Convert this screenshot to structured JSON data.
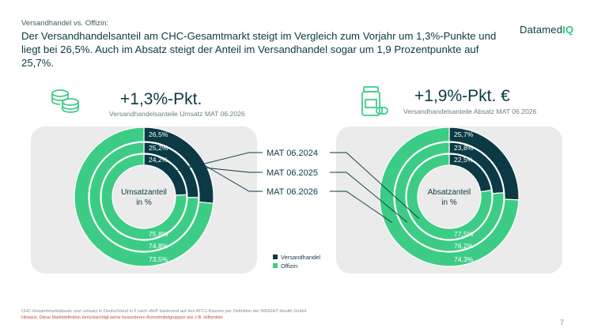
{
  "header": {
    "kicker": "Versandhandel vs. Offizin:",
    "headline": "Der Versandhandelsanteil am CHC-Gesamtmarkt steigt im Vergleich zum Vorjahr um 1,3%-Punkte und liegt bei 26,5%. Auch im Absatz steigt der Anteil im Versandhandel sogar um 1,9 Prozentpunkte auf 25,7%.",
    "logo_main": "Datamed",
    "logo_accent": "IQ"
  },
  "left_block": {
    "big_value": "+1,3%-Pkt.",
    "subtitle": "Versandhandelsanteile Umsatz MAT 06.2026",
    "icon": "coins-icon"
  },
  "right_block": {
    "big_value": "+1,9%-Pkt. €",
    "subtitle": "Versandhandelsanteile Absatz MAT 06.2026",
    "icon": "medicine-icon"
  },
  "colors": {
    "versandhandel": "#0b3a45",
    "offizin": "#3dcc85",
    "panel": "#ebebeb"
  },
  "chart_data": [
    {
      "type": "pie",
      "variant": "nested-donut",
      "center_label": [
        "Umsatzanteil",
        "in %"
      ],
      "rings": [
        "MAT 06.2026",
        "MAT 06.2025",
        "MAT 06.2024"
      ],
      "series": [
        {
          "name": "Versandhandel",
          "values": [
            26.5,
            25.2,
            24.2
          ],
          "labels": [
            "26,5%",
            "25,2%",
            "24,2%"
          ]
        },
        {
          "name": "Offizin",
          "values": [
            73.5,
            74.8,
            75.8
          ],
          "labels": [
            "73,5%",
            "74,8%",
            "75,8%"
          ]
        }
      ]
    },
    {
      "type": "pie",
      "variant": "nested-donut",
      "center_label": [
        "Absatzanteil",
        "in %"
      ],
      "rings": [
        "MAT 06.2026",
        "MAT 06.2025",
        "MAT 06.2024"
      ],
      "series": [
        {
          "name": "Versandhandel",
          "values": [
            25.7,
            23.8,
            22.5
          ],
          "labels": [
            "25,7%",
            "23,8%",
            "22,5%"
          ]
        },
        {
          "name": "Offizin",
          "values": [
            74.3,
            76.2,
            77.5
          ],
          "labels": [
            "74,3%",
            "76,2%",
            "77,5%"
          ]
        }
      ]
    }
  ],
  "ring_legend": [
    "MAT 06.2024",
    "MAT 06.2025",
    "MAT 06.2026"
  ],
  "series_legend": [
    "Versandhandel",
    "Offizin"
  ],
  "footer": {
    "source": "CHC-Gesamtmarktabsatz und -umsatz in Deutschland in € nach rAVP basierend auf den ATC1-Klassen per Definition der INSIGHT Health GmbH",
    "hint": "Hinweis: Diese Marktdefinition berücksichtigt keine besonderen Arzneimittelgruppen wie z.B. Hilfsmittel",
    "page_number": "7"
  }
}
